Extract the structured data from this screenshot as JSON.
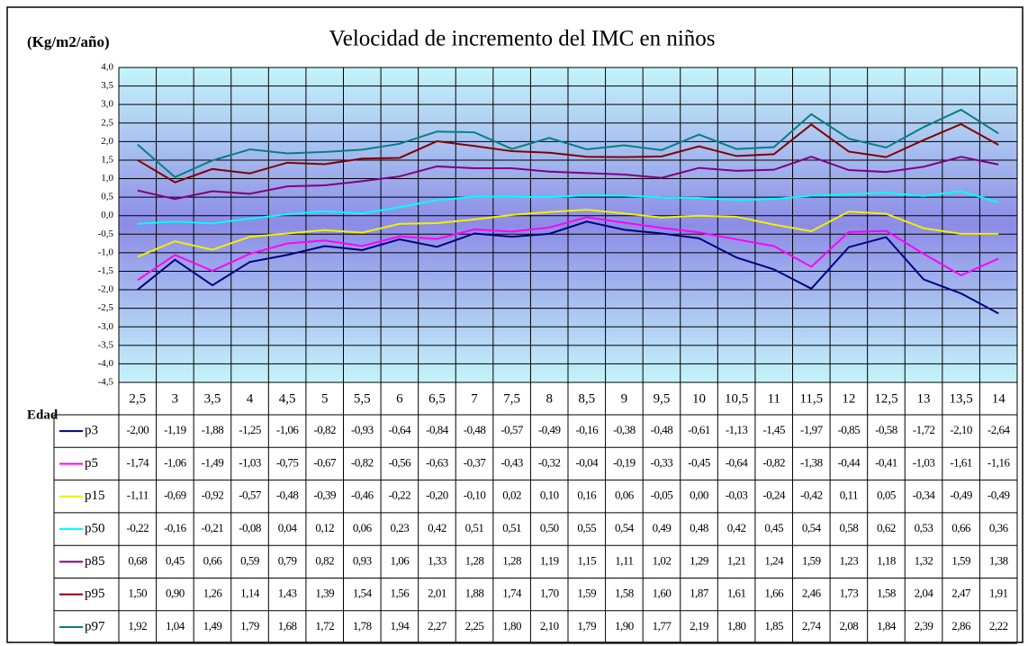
{
  "chart_data": {
    "type": "line",
    "title": "Velocidad de incremento del IMC en niños",
    "y_label": "(Kg/m2/año)",
    "x_label": "Edad",
    "categories": [
      "2,5",
      "3",
      "3,5",
      "4",
      "4,5",
      "5",
      "5,5",
      "6",
      "6,5",
      "7",
      "7,5",
      "8",
      "8,5",
      "9",
      "9,5",
      "10",
      "10,5",
      "11",
      "11,5",
      "12",
      "12,5",
      "13",
      "13,5",
      "14"
    ],
    "ylim": [
      -4.5,
      4
    ],
    "yticks": [
      {
        "value": 4,
        "label": "4,0"
      },
      {
        "value": 3.5,
        "label": "3,5"
      },
      {
        "value": 3,
        "label": "3,0"
      },
      {
        "value": 2.5,
        "label": "2,5"
      },
      {
        "value": 2,
        "label": "2,0"
      },
      {
        "value": 1.5,
        "label": "1,5"
      },
      {
        "value": 1,
        "label": "1,0"
      },
      {
        "value": 0.5,
        "label": "0,5"
      },
      {
        "value": 0,
        "label": "0,0"
      },
      {
        "value": -0.5,
        "label": "-0,5"
      },
      {
        "value": -1,
        "label": "-1,0"
      },
      {
        "value": -1.5,
        "label": "-1,5"
      },
      {
        "value": -2,
        "label": "-2,0"
      },
      {
        "value": -2.5,
        "label": "-2,5"
      },
      {
        "value": -3,
        "label": "-3,0"
      },
      {
        "value": -3.5,
        "label": "-3,5"
      },
      {
        "value": -4,
        "label": "-4,0"
      },
      {
        "value": -4.5,
        "label": "-4,5"
      }
    ],
    "grid": true,
    "series": [
      {
        "name": "p3",
        "color": "#000080",
        "values": [
          -2.0,
          -1.19,
          -1.88,
          -1.25,
          -1.06,
          -0.82,
          -0.93,
          -0.64,
          -0.84,
          -0.48,
          -0.57,
          -0.49,
          -0.16,
          -0.38,
          -0.48,
          -0.61,
          -1.13,
          -1.45,
          -1.97,
          -0.85,
          -0.58,
          -1.72,
          -2.1,
          -2.64
        ],
        "value_labels": [
          "-2,00",
          "-1,19",
          "-1,88",
          "-1,25",
          "-1,06",
          "-0,82",
          "-0,93",
          "-0,64",
          "-0,84",
          "-0,48",
          "-0,57",
          "-0,49",
          "-0,16",
          "-0,38",
          "-0,48",
          "-0,61",
          "-1,13",
          "-1,45",
          "-1,97",
          "-0,85",
          "-0,58",
          "-1,72",
          "-2,10",
          "-2,64"
        ]
      },
      {
        "name": "p5",
        "color": "#ff00ff",
        "values": [
          -1.74,
          -1.06,
          -1.49,
          -1.03,
          -0.75,
          -0.67,
          -0.82,
          -0.56,
          -0.63,
          -0.37,
          -0.43,
          -0.32,
          -0.04,
          -0.19,
          -0.33,
          -0.45,
          -0.64,
          -0.82,
          -1.38,
          -0.44,
          -0.41,
          -1.03,
          -1.61,
          -1.16
        ],
        "value_labels": [
          "-1,74",
          "-1,06",
          "-1,49",
          "-1,03",
          "-0,75",
          "-0,67",
          "-0,82",
          "-0,56",
          "-0,63",
          "-0,37",
          "-0,43",
          "-0,32",
          "-0,04",
          "-0,19",
          "-0,33",
          "-0,45",
          "-0,64",
          "-0,82",
          "-1,38",
          "-0,44",
          "-0,41",
          "-1,03",
          "-1,61",
          "-1,16"
        ]
      },
      {
        "name": "p15",
        "color": "#f0f000",
        "values": [
          -1.11,
          -0.69,
          -0.92,
          -0.57,
          -0.48,
          -0.39,
          -0.46,
          -0.22,
          -0.2,
          -0.1,
          0.02,
          0.1,
          0.16,
          0.06,
          -0.05,
          0.0,
          -0.03,
          -0.24,
          -0.42,
          0.11,
          0.05,
          -0.34,
          -0.49,
          -0.49
        ],
        "value_labels": [
          "-1,11",
          "-0,69",
          "-0,92",
          "-0,57",
          "-0,48",
          "-0,39",
          "-0,46",
          "-0,22",
          "-0,20",
          "-0,10",
          "0,02",
          "0,10",
          "0,16",
          "0,06",
          "-0,05",
          "0,00",
          "-0,03",
          "-0,24",
          "-0,42",
          "0,11",
          "0,05",
          "-0,34",
          "-0,49",
          "-0,49"
        ]
      },
      {
        "name": "p50",
        "color": "#00ffff",
        "values": [
          -0.22,
          -0.16,
          -0.21,
          -0.08,
          0.04,
          0.12,
          0.06,
          0.23,
          0.42,
          0.51,
          0.51,
          0.5,
          0.55,
          0.54,
          0.49,
          0.48,
          0.42,
          0.45,
          0.54,
          0.58,
          0.62,
          0.53,
          0.66,
          0.36
        ],
        "value_labels": [
          "-0,22",
          "-0,16",
          "-0,21",
          "-0,08",
          "0,04",
          "0,12",
          "0,06",
          "0,23",
          "0,42",
          "0,51",
          "0,51",
          "0,50",
          "0,55",
          "0,54",
          "0,49",
          "0,48",
          "0,42",
          "0,45",
          "0,54",
          "0,58",
          "0,62",
          "0,53",
          "0,66",
          "0,36"
        ]
      },
      {
        "name": "p85",
        "color": "#800080",
        "values": [
          0.68,
          0.45,
          0.66,
          0.59,
          0.79,
          0.82,
          0.93,
          1.06,
          1.33,
          1.28,
          1.28,
          1.19,
          1.15,
          1.11,
          1.02,
          1.29,
          1.21,
          1.24,
          1.59,
          1.23,
          1.18,
          1.32,
          1.59,
          1.38
        ],
        "value_labels": [
          "0,68",
          "0,45",
          "0,66",
          "0,59",
          "0,79",
          "0,82",
          "0,93",
          "1,06",
          "1,33",
          "1,28",
          "1,28",
          "1,19",
          "1,15",
          "1,11",
          "1,02",
          "1,29",
          "1,21",
          "1,24",
          "1,59",
          "1,23",
          "1,18",
          "1,32",
          "1,59",
          "1,38"
        ]
      },
      {
        "name": "p95",
        "color": "#800000",
        "values": [
          1.5,
          0.9,
          1.26,
          1.14,
          1.43,
          1.39,
          1.54,
          1.56,
          2.01,
          1.88,
          1.74,
          1.7,
          1.59,
          1.58,
          1.6,
          1.87,
          1.61,
          1.66,
          2.46,
          1.73,
          1.58,
          2.04,
          2.47,
          1.91
        ],
        "value_labels": [
          "1,50",
          "0,90",
          "1,26",
          "1,14",
          "1,43",
          "1,39",
          "1,54",
          "1,56",
          "2,01",
          "1,88",
          "1,74",
          "1,70",
          "1,59",
          "1,58",
          "1,60",
          "1,87",
          "1,61",
          "1,66",
          "2,46",
          "1,73",
          "1,58",
          "2,04",
          "2,47",
          "1,91"
        ]
      },
      {
        "name": "p97",
        "color": "#008080",
        "values": [
          1.92,
          1.04,
          1.49,
          1.79,
          1.68,
          1.72,
          1.78,
          1.94,
          2.27,
          2.25,
          1.8,
          2.1,
          1.79,
          1.9,
          1.77,
          2.19,
          1.8,
          1.85,
          2.74,
          2.08,
          1.84,
          2.39,
          2.86,
          2.22
        ],
        "value_labels": [
          "1,92",
          "1,04",
          "1,49",
          "1,79",
          "1,68",
          "1,72",
          "1,78",
          "1,94",
          "2,27",
          "2,25",
          "1,80",
          "2,10",
          "1,79",
          "1,90",
          "1,77",
          "2,19",
          "1,80",
          "1,85",
          "2,74",
          "2,08",
          "1,84",
          "2,39",
          "2,86",
          "2,22"
        ]
      }
    ]
  }
}
